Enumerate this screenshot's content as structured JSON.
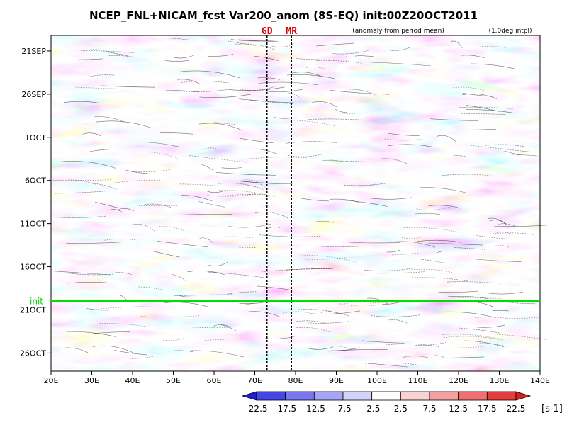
{
  "chart_data": {
    "type": "heatmap",
    "title": "NCEP_FNL+NICAM_fcst Var200_anom (8S-EQ) init:00Z20OCT2011",
    "subtitle_left": "(anomaly from period mean)",
    "subtitle_right": "(1.0deg intpl)",
    "xlabel": "",
    "ylabel": "",
    "x_ticks": [
      "20E",
      "30E",
      "40E",
      "50E",
      "60E",
      "70E",
      "80E",
      "90E",
      "100E",
      "110E",
      "120E",
      "130E",
      "140E"
    ],
    "x_range": [
      20,
      140
    ],
    "y_ticks": [
      "21SEP",
      "26SEP",
      "1OCT",
      "6OCT",
      "11OCT",
      "16OCT",
      "21OCT",
      "26OCT"
    ],
    "y_tick_days": [
      0,
      5,
      10,
      15,
      20,
      25,
      30,
      35
    ],
    "init_label": "init",
    "init_day": 29,
    "markers": [
      {
        "label": "GD",
        "lon": 73
      },
      {
        "label": "MR",
        "lon": 79
      }
    ],
    "colorbar": {
      "levels": [
        -22.5,
        -17.5,
        -12.5,
        -7.5,
        -2.5,
        2.5,
        7.5,
        12.5,
        17.5,
        22.5
      ],
      "tick_labels": [
        "-22.5",
        "-17.5",
        "-12.5",
        "-7.5",
        "-2.5",
        "2.5",
        "7.5",
        "12.5",
        "17.5",
        "22.5"
      ],
      "colors": [
        "#1e1edc",
        "#4646e6",
        "#7878f0",
        "#a5a5f5",
        "#d2d2fa",
        "#ffffff",
        "#fad2d2",
        "#f5a0a0",
        "#f07070",
        "#e63c3c",
        "#dc1e1e"
      ],
      "unit": "[s-1]"
    }
  }
}
